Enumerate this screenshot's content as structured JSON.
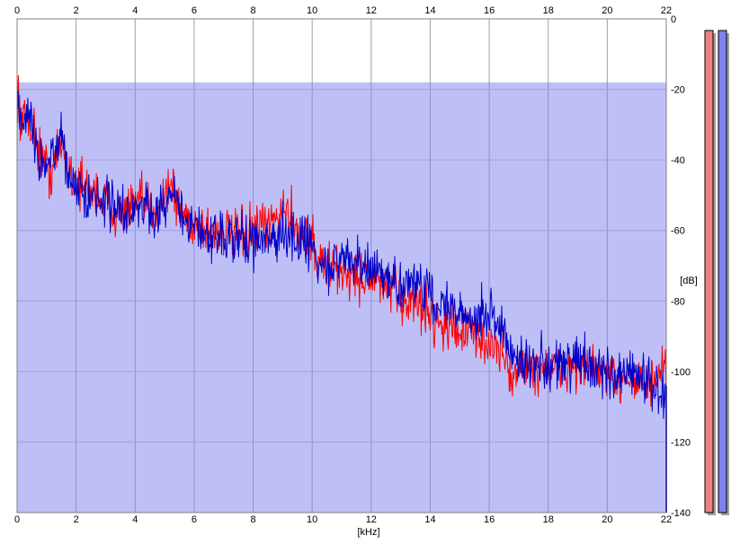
{
  "chart_data": {
    "type": "line",
    "xlabel": "[kHz]",
    "ylabel": "[dB]",
    "xlim": [
      0,
      22
    ],
    "ylim": [
      -140,
      0
    ],
    "x_ticks": [
      0,
      2,
      4,
      6,
      8,
      10,
      12,
      14,
      16,
      18,
      20,
      22
    ],
    "y_ticks": [
      0,
      -20,
      -40,
      -60,
      -80,
      -100,
      -120,
      -140
    ],
    "grid": true,
    "series": [
      {
        "color": "#ff0000",
        "x": [
          0,
          0.05,
          0.15,
          0.3,
          0.5,
          0.7,
          0.9,
          1.1,
          1.3,
          1.5,
          1.7,
          2.0,
          2.3,
          2.6,
          3.0,
          3.4,
          3.8,
          4.2,
          4.6,
          5.0,
          5.2,
          5.5,
          6.0,
          6.5,
          7.0,
          7.5,
          8.0,
          8.5,
          9.0,
          9.3,
          9.6,
          10.0,
          10.1,
          10.5,
          11.0,
          11.5,
          12.0,
          12.5,
          13.0,
          13.5,
          14.0,
          14.5,
          15.0,
          15.5,
          16.0,
          16.3,
          16.6,
          16.8,
          17.0,
          17.5,
          18.0,
          18.5,
          19.0,
          19.5,
          20.0,
          20.3,
          20.6,
          21.0,
          21.5,
          22.0
        ],
        "y": [
          -18,
          -22,
          -32,
          -26,
          -30,
          -36,
          -40,
          -44,
          -40,
          -36,
          -42,
          -46,
          -48,
          -49,
          -52,
          -55,
          -54,
          -52,
          -54,
          -50,
          -46,
          -55,
          -58,
          -60,
          -60,
          -62,
          -60,
          -59,
          -54,
          -56,
          -60,
          -61,
          -68,
          -70,
          -72,
          -73,
          -74,
          -76,
          -80,
          -80,
          -84,
          -87,
          -88,
          -90,
          -92,
          -94,
          -96,
          -104,
          -98,
          -100,
          -99,
          -100,
          -98,
          -99,
          -101,
          -104,
          -100,
          -102,
          -104,
          -100
        ]
      },
      {
        "color": "#0000c8",
        "x": [
          0,
          0.05,
          0.15,
          0.3,
          0.5,
          0.7,
          0.9,
          1.1,
          1.3,
          1.5,
          1.7,
          2.0,
          2.3,
          2.6,
          3.0,
          3.4,
          3.8,
          4.2,
          4.6,
          5.0,
          5.2,
          5.5,
          6.0,
          6.5,
          7.0,
          7.5,
          8.0,
          8.5,
          9.0,
          9.3,
          9.6,
          10.0,
          10.1,
          10.5,
          11.0,
          11.5,
          12.0,
          12.5,
          13.0,
          13.5,
          14.0,
          14.5,
          15.0,
          15.5,
          16.0,
          16.3,
          16.6,
          16.8,
          17.0,
          17.5,
          18.0,
          18.5,
          19.0,
          19.5,
          20.0,
          20.3,
          20.6,
          21.0,
          21.5,
          22.0
        ],
        "y": [
          -16,
          -24,
          -30,
          -25,
          -31,
          -37,
          -42,
          -40,
          -37,
          -33,
          -43,
          -45,
          -49,
          -50,
          -51,
          -54,
          -55,
          -53,
          -55,
          -53,
          -49,
          -56,
          -59,
          -61,
          -62,
          -63,
          -64,
          -62,
          -61,
          -62,
          -63,
          -62,
          -69,
          -71,
          -68,
          -70,
          -72,
          -73,
          -76,
          -74,
          -78,
          -82,
          -83,
          -85,
          -84,
          -86,
          -90,
          -96,
          -95,
          -98,
          -97,
          -98,
          -97,
          -99,
          -100,
          -102,
          -100,
          -101,
          -103,
          -106
        ]
      }
    ]
  },
  "level_meters": {
    "red": {
      "color": "#f08080",
      "level": 1.0
    },
    "blue": {
      "color": "#8080f0",
      "level": 1.0
    }
  }
}
